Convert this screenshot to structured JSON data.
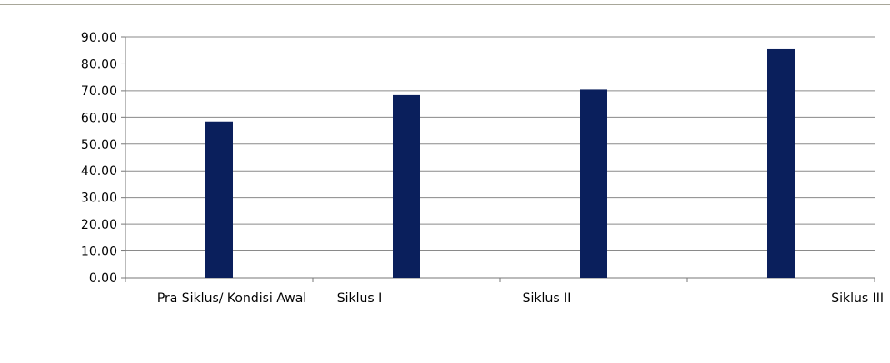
{
  "chart_data": {
    "type": "bar",
    "categories": [
      "Pra Siklus/ Kondisi Awal",
      "Siklus I",
      "Siklus II",
      "Siklus III"
    ],
    "values": [
      58.5,
      68.3,
      70.5,
      85.6
    ],
    "y_ticks": [
      "0.00",
      "10.00",
      "20.00",
      "30.00",
      "40.00",
      "50.00",
      "60.00",
      "70.00",
      "80.00",
      "90.00"
    ],
    "ylim": [
      0,
      90
    ],
    "grid": true,
    "legend": "none",
    "colors": {
      "bar": "#0a1f5c",
      "grid": "#8a8a8a",
      "axis": "#777777",
      "frame_top": "#8c8a78"
    }
  }
}
